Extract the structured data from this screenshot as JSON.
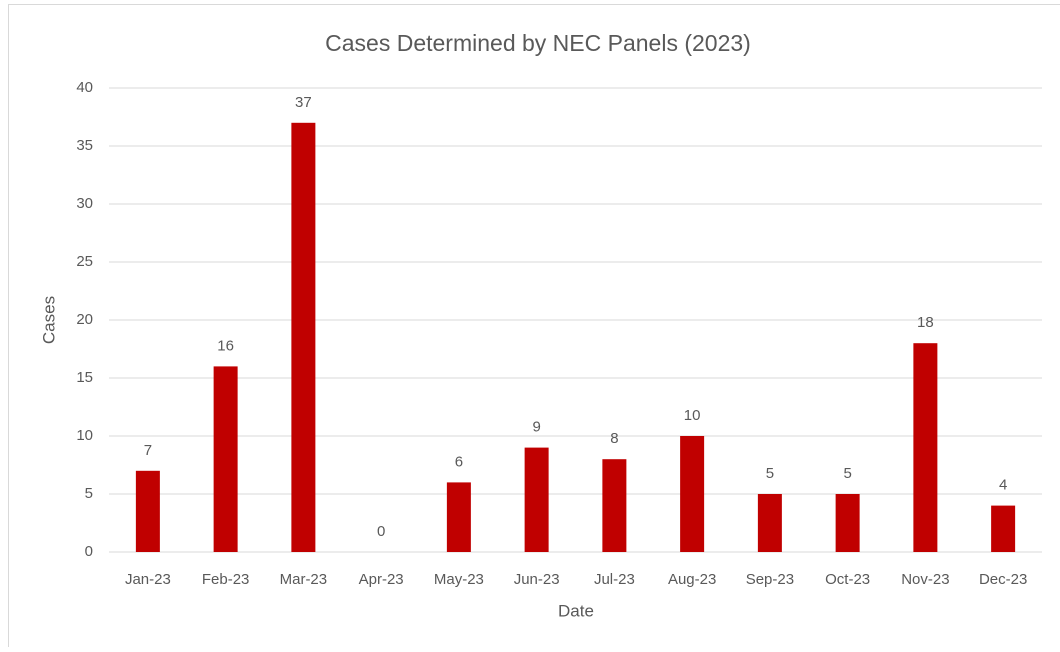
{
  "chart_data": {
    "type": "bar",
    "title": "Cases Determined by NEC Panels (2023)",
    "x_label": "Date",
    "y_label": "Cases",
    "categories": [
      "Jan-23",
      "Feb-23",
      "Mar-23",
      "Apr-23",
      "May-23",
      "Jun-23",
      "Jul-23",
      "Aug-23",
      "Sep-23",
      "Oct-23",
      "Nov-23",
      "Dec-23"
    ],
    "values": [
      7,
      16,
      37,
      0,
      6,
      9,
      8,
      10,
      5,
      5,
      18,
      4
    ],
    "color": "#c00000",
    "ylim": [
      0,
      40
    ],
    "yticks": [
      0,
      5,
      10,
      15,
      20,
      25,
      30,
      35,
      40
    ],
    "grid": true
  }
}
